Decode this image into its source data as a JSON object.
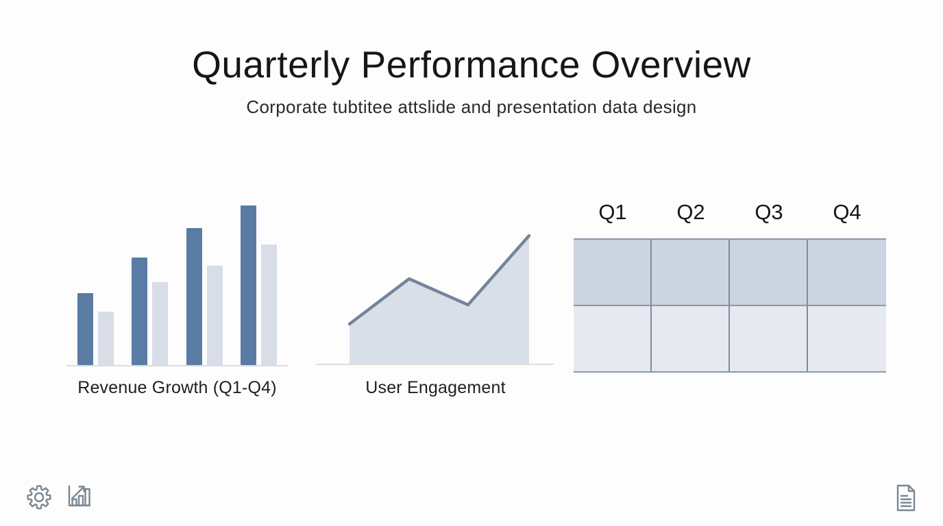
{
  "slide": {
    "title": "Quarterly Performance Overview",
    "subtitle": "Corporate tubtitee attslide and presentation data design"
  },
  "charts": {
    "bar_label": "Revenue Growth (Q1-Q4)",
    "area_label": "User Engagement"
  },
  "table": {
    "columns": [
      "Q1",
      "Q2",
      "Q3",
      "Q4"
    ],
    "row_count": 2
  },
  "footer_icons": [
    "settings-gear-icon",
    "trending-bar-chart-icon",
    "document-page-icon"
  ],
  "colors": {
    "background": "#fdfdfd",
    "text": "#1c1c1c",
    "bar_primary": "#5a7ba3",
    "bar_secondary": "#d8dde8",
    "line_stroke": "#74849a",
    "area_fill": "#d9dfe9",
    "baseline": "#dcdcdc",
    "table_row1": "#cdd4e1",
    "table_row2": "#e6eaf0",
    "table_hline": "#8b95a5",
    "table_vline": "#7e8aa0",
    "icon_stroke": "#7a8693"
  },
  "chart_data": [
    {
      "type": "bar",
      "title": "Revenue Growth (Q1-Q4)",
      "categories": [
        "Q1",
        "Q2",
        "Q3",
        "Q4"
      ],
      "series": [
        {
          "name": "primary",
          "color": "#5a7ba3",
          "values": [
            45.1,
            67.4,
            85.8,
            100
          ]
        },
        {
          "name": "secondary",
          "color": "#d8dde8",
          "values": [
            33.5,
            51.9,
            62.2,
            75.5
          ]
        }
      ],
      "ylim": [
        0,
        100
      ],
      "xlabel": "",
      "ylabel": "",
      "axis_tick_labels_shown": false,
      "legend": "none",
      "note": "decorative slide chart; no numeric data labels or axis values are rendered, values are relative bar heights (percent of tallest bar)"
    },
    {
      "type": "area",
      "title": "User Engagement",
      "x": [
        0,
        33.2,
        66.0,
        100
      ],
      "values": [
        29.3,
        62.6,
        43.4,
        94.4
      ],
      "ylim": [
        0,
        100
      ],
      "xlabel": "",
      "ylabel": "",
      "axis_tick_labels_shown": false,
      "legend": "none",
      "note": "single-series trend line with filled area; no numeric labels shown, values are relative heights above the baseline (percent of plot height)"
    },
    {
      "type": "table",
      "columns": [
        "Q1",
        "Q2",
        "Q3",
        "Q4"
      ],
      "rows": [
        [
          "",
          "",
          "",
          ""
        ],
        [
          "",
          "",
          "",
          ""
        ]
      ],
      "note": "empty two-row placeholder table; top row shaded darker than bottom row"
    }
  ]
}
